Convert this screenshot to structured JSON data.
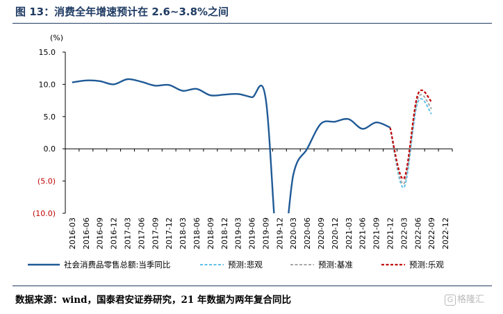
{
  "header": {
    "title": "图 13：消费全年增速预计在 2.6~3.8%之间"
  },
  "footer": {
    "source": "数据来源：wind，国泰君安证券研究，21 年数据为两年复合同比",
    "watermark_icon": "G",
    "watermark_text": "格隆汇"
  },
  "colors": {
    "actual": "#1f5a96",
    "pessimistic": "#5ec0e8",
    "base": "#a6a6a6",
    "optimistic": "#c00000",
    "negative_label": "#c00000"
  },
  "chart_data": {
    "type": "line",
    "unit_label": "(%)",
    "ylim": [
      -10,
      15
    ],
    "yticks": [
      15,
      10,
      5,
      0,
      -5,
      -10
    ],
    "ytick_labels": [
      "15.0",
      "10.0",
      "5.0",
      "0.0",
      "(5.0)",
      "(10.0)"
    ],
    "x_labels": [
      "2016-03",
      "2016-06",
      "2016-09",
      "2016-12",
      "2017-03",
      "2017-06",
      "2017-09",
      "2017-12",
      "2018-03",
      "2018-06",
      "2018-09",
      "2018-12",
      "2019-03",
      "2019-06",
      "2019-09",
      "2019-12",
      "2020-03",
      "2020-06",
      "2020-09",
      "2020-12",
      "2021-03",
      "2021-06",
      "2021-09",
      "2021-12",
      "2022-03",
      "2022-06",
      "2022-09",
      "2022-12"
    ],
    "legend_position": "bottom",
    "series": [
      {
        "name": "社会消费品零售总额:当季同比",
        "style": "solid",
        "values": [
          10.3,
          10.6,
          10.5,
          10.0,
          10.8,
          10.4,
          9.8,
          9.9,
          9.0,
          9.3,
          8.3,
          8.4,
          8.5,
          8.0,
          7.8,
          -19.0,
          -4.0,
          0.0,
          3.9,
          4.2,
          4.6,
          3.1,
          4.1,
          3.3
        ]
      },
      {
        "name": "预测:悲观",
        "style": "dashed",
        "start_index": 23,
        "values": [
          3.3,
          -6.0,
          7.2,
          5.4
        ]
      },
      {
        "name": "预测:基准",
        "style": "dashed",
        "start_index": 23,
        "values": [
          3.3,
          -5.4,
          7.8,
          6.2
        ]
      },
      {
        "name": "预测:乐观",
        "style": "dashed",
        "start_index": 23,
        "values": [
          3.3,
          -4.6,
          8.4,
          7.3
        ]
      }
    ]
  }
}
